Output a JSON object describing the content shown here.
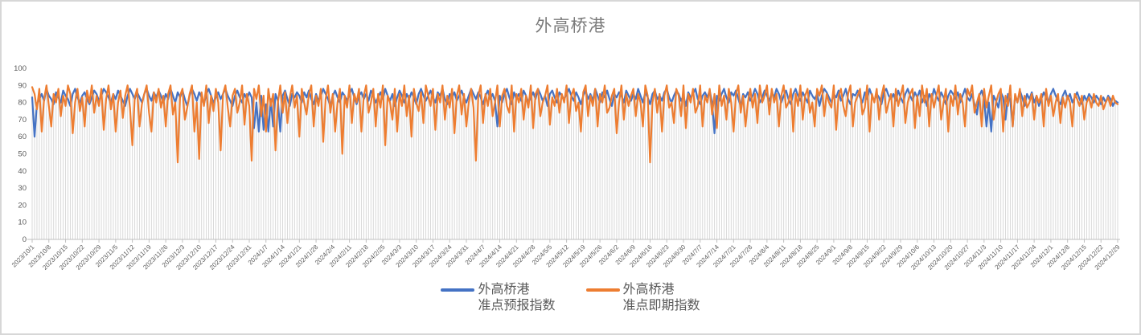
{
  "title": "外高桥港",
  "legend": {
    "items": [
      {
        "line1": "外高桥港",
        "line2": "准点预报指数",
        "color": "#4472C4"
      },
      {
        "line1": "外高桥港",
        "line2": "准点即期指数",
        "color": "#ED7D31"
      }
    ]
  },
  "chart_data": {
    "type": "line",
    "title": "外高桥港",
    "xlabel": "",
    "ylabel": "",
    "ylim": [
      0,
      100
    ],
    "y_ticks": [
      0,
      10,
      20,
      30,
      40,
      50,
      60,
      70,
      80,
      90,
      100
    ],
    "grid": "vertical-drop-lines-per-point, no horizontal gridlines",
    "legend_position": "bottom-center",
    "x_label_every": 7,
    "x_labels": [
      "2023/10/1",
      "2023/10/8",
      "2023/10/15",
      "2023/10/22",
      "2023/10/29",
      "2023/11/5",
      "2023/11/12",
      "2023/11/19",
      "2023/11/26",
      "2023/12/3",
      "2023/12/10",
      "2023/12/17",
      "2023/12/24",
      "2023/12/31",
      "2024/1/7",
      "2024/1/14",
      "2024/1/21",
      "2024/1/28",
      "2024/2/4",
      "2024/2/11",
      "2024/2/18",
      "2024/2/25",
      "2024/3/3",
      "2024/3/10",
      "2024/3/17",
      "2024/3/24",
      "2024/3/31",
      "2024/4/7",
      "2024/4/14",
      "2024/4/21",
      "2024/4/28",
      "2024/5/5",
      "2024/5/12",
      "2024/5/19",
      "2024/5/26",
      "2024/6/2",
      "2024/6/9",
      "2024/6/16",
      "2024/6/23",
      "2024/6/30",
      "2024/7/7",
      "2024/7/14",
      "2024/7/21",
      "2024/7/28",
      "2024/8/4",
      "2024/8/11",
      "2024/8/18",
      "2024/8/25",
      "2024/9/1",
      "2024/9/8",
      "2024/9/15",
      "2024/9/22",
      "2024/9/29",
      "2024/10/6",
      "2024/10/13",
      "2024/10/20",
      "2024/10/27",
      "2024/11/3",
      "2024/11/10",
      "2024/11/17",
      "2024/11/24",
      "2024/12/1",
      "2024/12/8",
      "2024/12/15",
      "2024/12/22",
      "2024/12/29"
    ],
    "colors": {
      "drop_line": "#D9D9D9",
      "axis": "#BFBFBF",
      "tick_label": "#595959",
      "title": "#7A7A7A"
    },
    "series": [
      {
        "name": "外高桥港 准点预报指数",
        "color": "#4472C4",
        "values": [
          83,
          60,
          79,
          82,
          85,
          81,
          88,
          84,
          82,
          79,
          86,
          83,
          80,
          87,
          84,
          82,
          78,
          85,
          88,
          83,
          80,
          84,
          86,
          82,
          79,
          83,
          87,
          85,
          81,
          84,
          88,
          86,
          83,
          80,
          85,
          82,
          87,
          84,
          81,
          78,
          84,
          88,
          85,
          82,
          86,
          83,
          80,
          85,
          88,
          84,
          81,
          86,
          83,
          87,
          84,
          80,
          85,
          82,
          88,
          84,
          80,
          86,
          83,
          87,
          82,
          78,
          84,
          88,
          85,
          81,
          86,
          83,
          79,
          85,
          88,
          84,
          80,
          83,
          86,
          82,
          85,
          88,
          84,
          81,
          78,
          84,
          87,
          83,
          80,
          85,
          82,
          86,
          83,
          65,
          80,
          63,
          84,
          64,
          79,
          63,
          82,
          66,
          85,
          81,
          63,
          84,
          87,
          82,
          78,
          85,
          83,
          86,
          84,
          80,
          86,
          83,
          87,
          82,
          79,
          85,
          81,
          84,
          88,
          85,
          82,
          78,
          84,
          87,
          83,
          80,
          86,
          84,
          81,
          85,
          88,
          83,
          79,
          84,
          86,
          82,
          85,
          81,
          87,
          84,
          80,
          83,
          86,
          82,
          88,
          84,
          81,
          85,
          78,
          83,
          87,
          84,
          80,
          85,
          82,
          86,
          83,
          79,
          85,
          88,
          84,
          81,
          84,
          87,
          83,
          80,
          86,
          84,
          88,
          82,
          79,
          85,
          83,
          86,
          81,
          84,
          87,
          83,
          80,
          84,
          88,
          85,
          82,
          86,
          83,
          79,
          84,
          87,
          82,
          85,
          81,
          66,
          84,
          80,
          85,
          88,
          83,
          79,
          86,
          82,
          85,
          81,
          87,
          84,
          80,
          83,
          86,
          82,
          88,
          85,
          81,
          84,
          78,
          85,
          87,
          83,
          80,
          86,
          84,
          82,
          85,
          88,
          84,
          81,
          86,
          83,
          79,
          84,
          87,
          82,
          85,
          81,
          88,
          84,
          80,
          86,
          83,
          87,
          82,
          78,
          85,
          83,
          86,
          84,
          80,
          87,
          84,
          81,
          85,
          82,
          88,
          84,
          80,
          86,
          83,
          79,
          85,
          87,
          82,
          84,
          81,
          86,
          88,
          83,
          80,
          84,
          87,
          85,
          81,
          84,
          78,
          86,
          83,
          85,
          88,
          82,
          79,
          84,
          86,
          83,
          87,
          80,
          62,
          84,
          81,
          85,
          88,
          83,
          80,
          86,
          84,
          87,
          82,
          78,
          85,
          83,
          86,
          81,
          84,
          88,
          85,
          80,
          83,
          87,
          84,
          81,
          86,
          83,
          88,
          85,
          80,
          84,
          87,
          82,
          79,
          85,
          88,
          84,
          81,
          86,
          83,
          80,
          87,
          84,
          82,
          85,
          78,
          84,
          88,
          86,
          83,
          80,
          85,
          83,
          87,
          81,
          84,
          88,
          82,
          79,
          85,
          84,
          87,
          83,
          80,
          86,
          82,
          88,
          84,
          81,
          85,
          83,
          79,
          86,
          88,
          84,
          82,
          85,
          81,
          87,
          83,
          80,
          85,
          88,
          84,
          81,
          86,
          83,
          87,
          80,
          84,
          78,
          85,
          82,
          88,
          84,
          81,
          86,
          83,
          79,
          84,
          87,
          85,
          82,
          86,
          80,
          84,
          88,
          83,
          81,
          85,
          79,
          73,
          84,
          87,
          82,
          66,
          80,
          63,
          84,
          81,
          77,
          86,
          83,
          70,
          85,
          81,
          66,
          84,
          80,
          87,
          83,
          78,
          85,
          82,
          86,
          80,
          84,
          78,
          82,
          86,
          83,
          80,
          85,
          88,
          84,
          81,
          79,
          84,
          87,
          82,
          85,
          80,
          83,
          86,
          82,
          79,
          84,
          81,
          85,
          83,
          80,
          84,
          82,
          79,
          83,
          80,
          84,
          82,
          78,
          81,
          80
        ]
      },
      {
        "name": "外高桥港 准点即期指数",
        "color": "#ED7D31",
        "values": [
          89,
          85,
          76,
          88,
          63,
          82,
          90,
          78,
          66,
          85,
          80,
          88,
          72,
          84,
          78,
          90,
          85,
          62,
          80,
          88,
          75,
          83,
          66,
          87,
          80,
          90,
          74,
          84,
          78,
          88,
          64,
          82,
          90,
          76,
          85,
          63,
          80,
          87,
          71,
          84,
          90,
          77,
          55,
          83,
          88,
          66,
          79,
          85,
          90,
          74,
          63,
          86,
          80,
          88,
          77,
          84,
          66,
          85,
          90,
          73,
          80,
          45,
          84,
          88,
          70,
          77,
          85,
          90,
          63,
          80,
          47,
          86,
          78,
          90,
          68,
          84,
          75,
          88,
          80,
          52,
          85,
          90,
          77,
          66,
          84,
          88,
          74,
          80,
          90,
          67,
          85,
          78,
          46,
          88,
          82,
          90,
          72,
          84,
          63,
          88,
          78,
          85,
          52,
          80,
          90,
          74,
          86,
          68,
          83,
          90,
          77,
          84,
          60,
          88,
          80,
          73,
          85,
          90,
          66,
          84,
          78,
          88,
          57,
          82,
          90,
          74,
          85,
          63,
          80,
          88,
          50,
          84,
          77,
          90,
          68,
          85,
          80,
          88,
          63,
          84,
          90,
          74,
          80,
          88,
          66,
          85,
          77,
          90,
          55,
          84,
          80,
          70,
          88,
          63,
          85,
          78,
          90,
          72,
          84,
          60,
          88,
          80,
          75,
          86,
          68,
          90,
          84,
          78,
          88,
          64,
          85,
          80,
          90,
          70,
          84,
          77,
          88,
          62,
          84,
          90,
          73,
          85,
          66,
          80,
          88,
          77,
          46,
          84,
          90,
          68,
          85,
          78,
          88,
          72,
          80,
          90,
          66,
          84,
          88,
          78,
          74,
          90,
          63,
          85,
          80,
          88,
          70,
          84,
          77,
          90,
          65,
          85,
          88,
          72,
          80,
          84,
          90,
          67,
          83,
          78,
          88,
          74,
          85,
          80,
          90,
          68,
          84,
          88,
          75,
          80,
          63,
          86,
          90,
          72,
          84,
          78,
          88,
          66,
          85,
          80,
          90,
          74,
          77,
          84,
          88,
          62,
          80,
          90,
          70,
          85,
          78,
          84,
          88,
          72,
          85,
          80,
          66,
          90,
          84,
          45,
          80,
          88,
          74,
          85,
          63,
          84,
          90,
          77,
          80,
          68,
          88,
          84,
          72,
          90,
          65,
          85,
          80,
          88,
          74,
          78,
          90,
          66,
          84,
          80,
          88,
          73,
          85,
          65,
          90,
          78,
          84,
          70,
          88,
          80,
          63,
          85,
          90,
          74,
          84,
          66,
          80,
          88,
          77,
          85,
          68,
          90,
          80,
          84,
          90,
          73,
          88,
          80,
          85,
          66,
          84,
          90,
          77,
          80,
          88,
          63,
          85,
          78,
          90,
          70,
          84,
          88,
          74,
          80,
          66,
          88,
          84,
          90,
          72,
          85,
          80,
          77,
          90,
          64,
          84,
          88,
          78,
          72,
          85,
          90,
          66,
          80,
          84,
          88,
          73,
          77,
          90,
          63,
          85,
          80,
          88,
          70,
          84,
          90,
          74,
          80,
          85,
          66,
          88,
          78,
          84,
          90,
          68,
          80,
          85,
          88,
          65,
          84,
          72,
          90,
          80,
          88,
          66,
          85,
          77,
          84,
          90,
          70,
          80,
          88,
          63,
          84,
          78,
          90,
          73,
          85,
          80,
          66,
          88,
          84,
          90,
          74,
          80,
          85,
          66,
          88,
          77,
          84,
          90,
          70,
          80,
          85,
          88,
          63,
          84,
          78,
          90,
          66,
          85,
          80,
          88,
          72,
          84,
          77,
          80,
          85,
          70,
          84,
          80,
          85,
          66,
          88,
          78,
          84,
          72,
          80,
          85,
          68,
          83,
          77,
          84,
          80,
          66,
          85,
          82,
          78,
          84,
          70,
          80,
          83,
          77,
          85,
          80,
          78,
          84,
          76,
          80,
          83,
          78,
          84,
          80,
          79
        ]
      }
    ]
  }
}
